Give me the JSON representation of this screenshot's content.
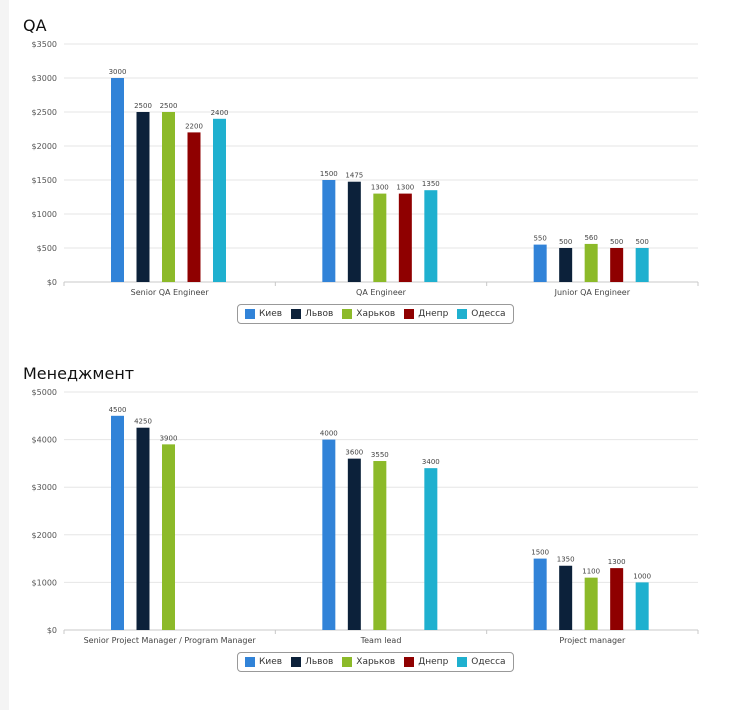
{
  "colors": {
    "Киев": "#3183d8",
    "Львов": "#0c213a",
    "Харьков": "#8cba29",
    "Днепр": "#8f0000",
    "Одесса": "#1fb0cf"
  },
  "chart_data": [
    {
      "type": "bar",
      "title": "QA",
      "categories": [
        "Senior QA Engineer",
        "QA Engineer",
        "Junior QA Engineer"
      ],
      "ylim": [
        0,
        3500
      ],
      "yticks": [
        "$0",
        "$500",
        "$1000",
        "$1500",
        "$2000",
        "$2500",
        "$3000",
        "$3500"
      ],
      "ytick_values": [
        0,
        500,
        1000,
        1500,
        2000,
        2500,
        3000,
        3500
      ],
      "grid": true,
      "legend": "bottom-center",
      "series": [
        {
          "name": "Киев",
          "values": [
            3000,
            1500,
            550
          ]
        },
        {
          "name": "Львов",
          "values": [
            2500,
            1475,
            500
          ]
        },
        {
          "name": "Харьков",
          "values": [
            2500,
            1300,
            560
          ]
        },
        {
          "name": "Днепр",
          "values": [
            2200,
            1300,
            500
          ]
        },
        {
          "name": "Одесса",
          "values": [
            2400,
            1350,
            500
          ]
        }
      ]
    },
    {
      "type": "bar",
      "title": "Менеджмент",
      "categories": [
        "Senior Project Manager / Program Manager",
        "Team lead",
        "Project manager"
      ],
      "ylim": [
        0,
        5000
      ],
      "yticks": [
        "$0",
        "$1000",
        "$2000",
        "$3000",
        "$4000",
        "$5000"
      ],
      "ytick_values": [
        0,
        1000,
        2000,
        3000,
        4000,
        5000
      ],
      "grid": true,
      "legend": "bottom-center",
      "series": [
        {
          "name": "Киев",
          "values": [
            4500,
            4000,
            1500
          ]
        },
        {
          "name": "Львов",
          "values": [
            4250,
            3600,
            1350
          ]
        },
        {
          "name": "Харьков",
          "values": [
            3900,
            3550,
            1100
          ]
        },
        {
          "name": "Днепр",
          "values": [
            null,
            null,
            1300
          ]
        },
        {
          "name": "Одесса",
          "values": [
            null,
            3400,
            1000
          ]
        }
      ]
    }
  ]
}
